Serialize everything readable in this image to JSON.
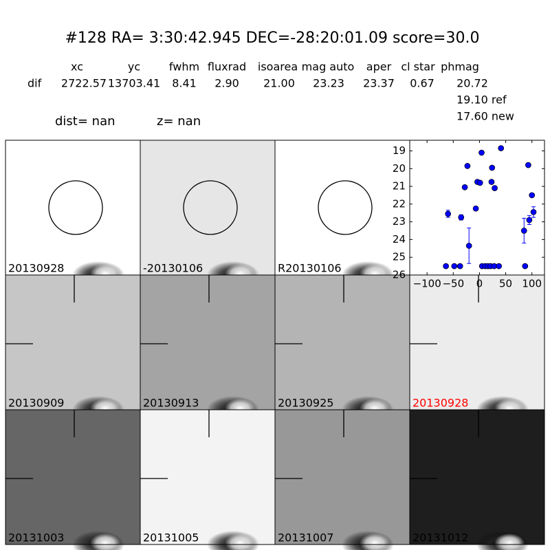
{
  "header": {
    "title": "#128   RA= 3:30:42.945 DEC=-28:20:01.09      score=30.0",
    "columns": [
      "xc",
      "yc",
      "fwhm",
      "fluxrad",
      "isoarea",
      "mag auto",
      "aper",
      "cl star",
      "phmag"
    ],
    "row_label": "dif",
    "row_values": [
      "2722.57",
      "13703.41",
      "8.41",
      "2.90",
      "21.00",
      "23.23",
      "23.37",
      "0.67",
      "20.72"
    ],
    "ref": "19.10 ref",
    "new": "17.60 new",
    "dist": "dist=   nan",
    "z": "z=   nan"
  },
  "panels": [
    "20130928",
    "-20130106",
    "R20130106",
    "20130909",
    "20130913",
    "20130925",
    "20130928",
    "20131003",
    "20131005",
    "20131007",
    "20131012"
  ],
  "highlight_color": "#ff0000",
  "chart_data": {
    "type": "scatter",
    "color": "#0000ff",
    "x": [
      -60,
      -64,
      -48,
      -37,
      -35,
      -28,
      -23,
      -20,
      -7,
      -4,
      1,
      4,
      5,
      11,
      16,
      21,
      23,
      24,
      28,
      29,
      37,
      41,
      85,
      87,
      93,
      95,
      100,
      103
    ],
    "values": [
      22.55,
      25.5,
      25.5,
      25.5,
      22.75,
      21.05,
      19.85,
      24.35,
      22.25,
      20.75,
      20.8,
      19.1,
      25.5,
      25.5,
      25.5,
      25.5,
      20.75,
      19.95,
      25.5,
      21.1,
      25.5,
      18.85,
      23.5,
      25.5,
      19.8,
      22.9,
      21.5,
      22.45
    ],
    "errors": [
      0.2,
      null,
      null,
      null,
      0.15,
      null,
      null,
      1.0,
      0.1,
      null,
      null,
      null,
      null,
      null,
      null,
      null,
      null,
      null,
      null,
      null,
      null,
      null,
      0.7,
      null,
      null,
      0.25,
      null,
      0.3
    ],
    "xlim": [
      -133,
      124
    ],
    "ylim": [
      26,
      18.4
    ],
    "xticks": [
      {
        "value": -100,
        "label": "−100"
      },
      {
        "value": -50,
        "label": "−50"
      },
      0,
      50,
      100
    ],
    "yticks": [
      19,
      20,
      21,
      22,
      23,
      24,
      25,
      26
    ]
  }
}
